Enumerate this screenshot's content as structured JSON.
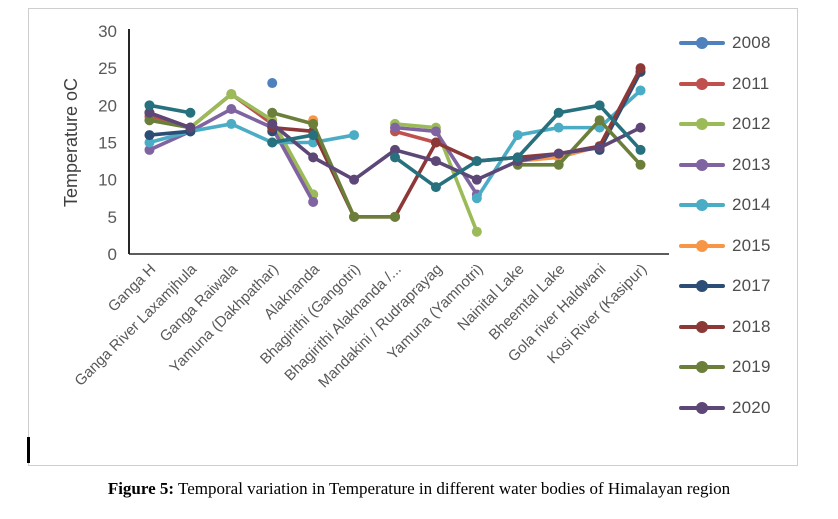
{
  "figure": {
    "label": "Figure 5:",
    "text": " Temporal variation in Temperature in different water bodies of Himalayan region"
  },
  "chart_data": {
    "type": "line",
    "title": "",
    "ylabel": "Temperature oC",
    "xlabel": "",
    "ylim": [
      0,
      30
    ],
    "yticks": [
      0,
      5,
      10,
      15,
      20,
      25,
      30
    ],
    "grid": false,
    "legend_position": "right",
    "axis_color": "#262626",
    "tick_label_color": "#595959",
    "categories": [
      "Ganga H",
      "Ganga River Laxamjhula",
      "Ganga Raiwala",
      "Yamuna (Dakhpathar)",
      "Alaknanda",
      "Bhagirithi (Gangotri)",
      "Bhagirithi Alaknanda /...",
      "Mandakini / Rudraprayag",
      "Yamuna (Yamnotri)",
      "Nainital Lake",
      "Bheemtal Lake",
      "Gola river Haldwani",
      "Kosi River (Kasipur)"
    ],
    "series": [
      {
        "name": "2008",
        "color": "#4F81BD",
        "in_legend": true,
        "values": [
          null,
          null,
          null,
          23,
          null,
          null,
          null,
          null,
          null,
          null,
          null,
          null,
          null
        ]
      },
      {
        "name": "2011",
        "color": "#C0504D",
        "in_legend": true,
        "values": [
          18.5,
          17,
          21.5,
          17.5,
          8,
          null,
          16.5,
          15,
          null,
          null,
          null,
          null,
          null
        ]
      },
      {
        "name": "2012",
        "color": "#9BBB59",
        "in_legend": true,
        "values": [
          18,
          17,
          21.5,
          18,
          8,
          null,
          17.5,
          17,
          3,
          null,
          null,
          null,
          null
        ]
      },
      {
        "name": "2013",
        "color": "#8064A2",
        "in_legend": true,
        "values": [
          14,
          16.5,
          19.5,
          17,
          7,
          null,
          17,
          16.5,
          8,
          null,
          null,
          null,
          null
        ]
      },
      {
        "name": "2014",
        "color": "#4BACC6",
        "in_legend": true,
        "values": [
          15,
          16.5,
          17.5,
          15,
          15,
          16,
          null,
          null,
          7.5,
          16,
          17,
          17,
          22
        ]
      },
      {
        "name": "2015",
        "color": "#F79646",
        "in_legend": true,
        "values": [
          null,
          null,
          null,
          null,
          18,
          null,
          null,
          null,
          null,
          12.5,
          13,
          14.5,
          24.5
        ]
      },
      {
        "name": "2017",
        "color": "#2C4D75",
        "in_legend": true,
        "values": [
          16,
          16.5,
          null,
          16.5,
          null,
          null,
          null,
          null,
          null,
          null,
          null,
          14,
          24.5
        ]
      },
      {
        "name": "2018",
        "color": "#8C3836",
        "in_legend": true,
        "values": [
          19,
          17,
          null,
          17,
          16.5,
          5,
          5,
          15,
          12.5,
          13,
          13.5,
          14.5,
          25
        ]
      },
      {
        "name": "2019",
        "color": "#6B7F3B",
        "in_legend": true,
        "values": [
          18,
          17,
          null,
          19,
          17.5,
          5,
          5,
          null,
          null,
          12,
          12,
          18,
          12
        ]
      },
      {
        "name": "2020",
        "color": "#5C4776",
        "in_legend": true,
        "values": [
          19,
          17,
          null,
          17.5,
          13,
          10,
          14,
          12.5,
          10,
          12.5,
          13.5,
          14.3,
          17
        ]
      },
      {
        "name": "unlabeled",
        "color": "#27707E",
        "in_legend": false,
        "values": [
          20,
          19,
          null,
          15,
          16,
          null,
          13,
          9,
          12.5,
          13,
          19,
          20,
          14
        ]
      }
    ]
  }
}
